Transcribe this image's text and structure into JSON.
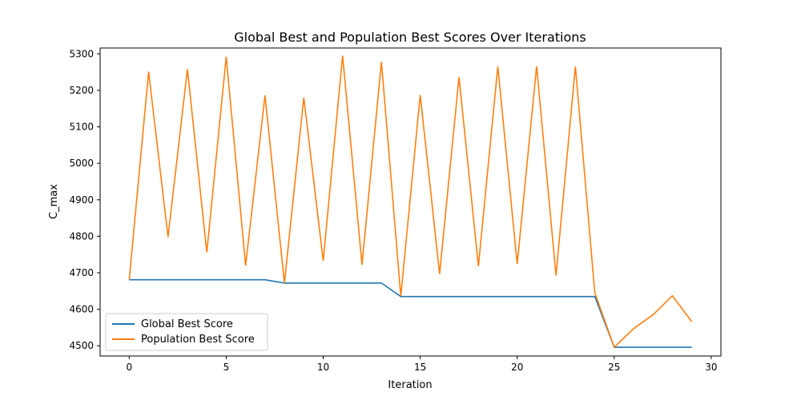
{
  "chart_data": {
    "type": "line",
    "title": "Global Best and Population Best Scores Over Iterations",
    "xlabel": "Iteration",
    "ylabel": "C_max",
    "xlim": [
      -1.5,
      30.5
    ],
    "ylim": [
      4472,
      5316
    ],
    "xticks": [
      0,
      5,
      10,
      15,
      20,
      25,
      30
    ],
    "yticks": [
      4500,
      4600,
      4700,
      4800,
      4900,
      5000,
      5100,
      5200,
      5300
    ],
    "grid": false,
    "legend_position": "lower-left",
    "x": [
      0,
      1,
      2,
      3,
      4,
      5,
      6,
      7,
      8,
      9,
      10,
      11,
      12,
      13,
      14,
      15,
      16,
      17,
      18,
      19,
      20,
      21,
      22,
      23,
      24,
      25,
      26,
      27,
      28,
      29
    ],
    "series": [
      {
        "name": "Global Best Score",
        "color": "#1f77b4",
        "values": [
          4681,
          4681,
          4681,
          4681,
          4681,
          4681,
          4681,
          4681,
          4672,
          4672,
          4672,
          4672,
          4672,
          4672,
          4635,
          4635,
          4635,
          4635,
          4635,
          4635,
          4635,
          4635,
          4635,
          4635,
          4635,
          4496,
          4496,
          4496,
          4496,
          4496
        ]
      },
      {
        "name": "Population Best Score",
        "color": "#ff7f0e",
        "values": [
          4681,
          5251,
          4798,
          5258,
          4756,
          5292,
          4720,
          5186,
          4672,
          5180,
          4733,
          5295,
          4722,
          5278,
          4636,
          5187,
          4697,
          5236,
          4718,
          5265,
          4724,
          5266,
          4693,
          5265,
          4645,
          4496,
          4547,
          4585,
          4637,
          4566
        ]
      }
    ]
  }
}
